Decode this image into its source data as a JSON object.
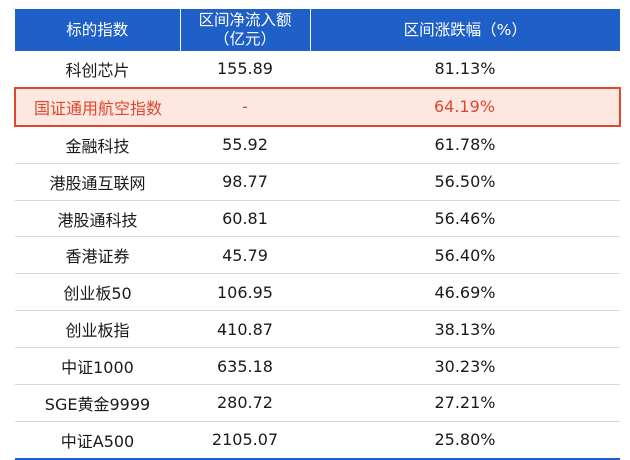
{
  "table": {
    "headers": {
      "col1": "标的指数",
      "col2_line1": "区间净流入额",
      "col2_line2": "（亿元）",
      "col3": "区间涨跌幅（%）"
    },
    "rows": [
      {
        "name": "科创芯片",
        "inflow": "155.89",
        "change": "81.13%"
      },
      {
        "name": "国证通用航空指数",
        "inflow": "-",
        "change": "64.19%"
      },
      {
        "name": "金融科技",
        "inflow": "55.92",
        "change": "61.78%"
      },
      {
        "name": "港股通互联网",
        "inflow": "98.77",
        "change": "56.50%"
      },
      {
        "name": "港股通科技",
        "inflow": "60.81",
        "change": "56.46%"
      },
      {
        "name": "香港证券",
        "inflow": "45.79",
        "change": "56.40%"
      },
      {
        "name": "创业板50",
        "inflow": "106.95",
        "change": "46.69%"
      },
      {
        "name": "创业板指",
        "inflow": "410.87",
        "change": "38.13%"
      },
      {
        "name": "中证1000",
        "inflow": "635.18",
        "change": "30.23%"
      },
      {
        "name": "SGE黄金9999",
        "inflow": "280.72",
        "change": "27.21%"
      },
      {
        "name": "中证A500",
        "inflow": "2105.07",
        "change": "25.80%"
      }
    ]
  },
  "colors": {
    "header_bg": "#1f5fc8",
    "highlight_border": "#e0472d",
    "highlight_bg": "#fde7e1"
  }
}
